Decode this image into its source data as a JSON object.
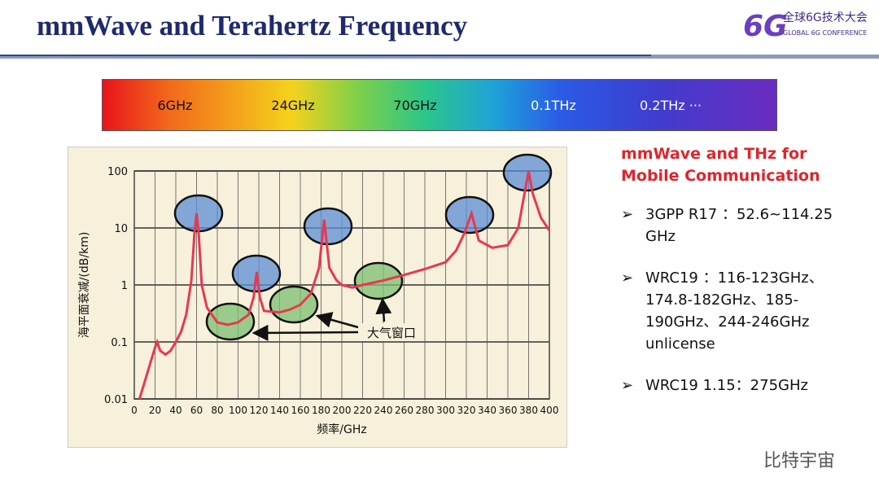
{
  "header": {
    "title": "mmWave and Terahertz Frequency",
    "logo_mark": "6G",
    "logo_text": "全球6G技术大会",
    "logo_subtext": "GLOBAL 6G CONFERENCE"
  },
  "spectrum": {
    "labels": [
      "6GHz",
      "24GHz",
      "70GHz",
      "0.1THz",
      "0.2THz ···"
    ]
  },
  "chart_data": {
    "type": "line",
    "x_label": "频率/GHz",
    "y_label": "海平面衰减/(dB/km)",
    "annotation": "大气窗口",
    "color": "#e8384f",
    "log_y": true,
    "grid": true,
    "x": [
      5,
      10,
      15,
      20,
      22,
      25,
      30,
      35,
      40,
      45,
      50,
      55,
      58,
      60,
      62,
      65,
      70,
      80,
      90,
      100,
      110,
      115,
      118,
      121,
      125,
      140,
      150,
      160,
      170,
      178,
      183,
      188,
      195,
      200,
      210,
      220,
      240,
      260,
      280,
      300,
      310,
      318,
      325,
      332,
      345,
      360,
      370,
      376,
      380,
      384,
      392,
      400
    ],
    "values": [
      0.01,
      0.02,
      0.04,
      0.08,
      0.1,
      0.07,
      0.06,
      0.07,
      0.1,
      0.15,
      0.3,
      1.2,
      8,
      18,
      8,
      1,
      0.4,
      0.22,
      0.2,
      0.22,
      0.3,
      0.6,
      1.7,
      0.6,
      0.35,
      0.33,
      0.37,
      0.45,
      0.7,
      2,
      14,
      2,
      1.2,
      1,
      0.9,
      1,
      1.2,
      1.5,
      1.9,
      2.5,
      4,
      8,
      18,
      6,
      4.5,
      5,
      10,
      40,
      100,
      40,
      15,
      9
    ],
    "xlim": [
      0,
      400
    ],
    "xticks": [
      0,
      20,
      40,
      60,
      80,
      100,
      120,
      140,
      160,
      180,
      200,
      220,
      240,
      260,
      280,
      300,
      320,
      340,
      360,
      380,
      400
    ],
    "ylim": [
      0.01,
      100
    ],
    "yticks": [
      0.01,
      0.1,
      1,
      10,
      100
    ]
  },
  "side": {
    "heading": "mmWave and THz for Mobile Communication",
    "bullets": [
      "3GPP R17 ：52.6~114.25 GHz",
      "WRC19 ：116-123GHz、174.8-182GHz、185-190GHz、244-246GHz unlicense",
      "WRC19 1.15：275GHz"
    ]
  },
  "watermark": "比特宇宙"
}
